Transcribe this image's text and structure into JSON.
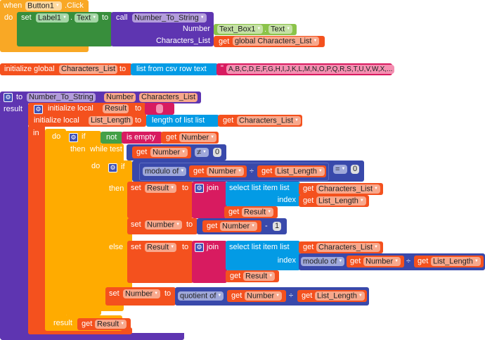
{
  "event": {
    "when": "when",
    "component": "Button1",
    "event": ".Click",
    "do": "do"
  },
  "set_label": {
    "set": "set",
    "component": "Label1",
    "dot": ".",
    "property": "Text",
    "to": "to"
  },
  "call": {
    "call": "call",
    "proc": "Number_To_String",
    "arg1": "Number",
    "arg2": "Characters_List"
  },
  "textbox": {
    "component": "Text_Box1",
    "dot": ".",
    "property": "Text"
  },
  "get_global": {
    "get": "get",
    "var": "global Characters_List"
  },
  "init_global": {
    "label": "initialize global",
    "name": "Characters_List",
    "to": "to",
    "csv": "list from csv row  text",
    "quote": "\"",
    "value": "A,B,C,D,E,F,G,H,I,J,K,L,M,N,O,P,Q,R,S,T,U,V,W,X,..."
  },
  "procedure": {
    "to": "to",
    "name": "Number_To_String",
    "param1": "Number",
    "param2": "Characters_List",
    "result": "result"
  },
  "local": {
    "init": "initialize local",
    "result_var": "Result",
    "to": "to",
    "init2": "initialize local",
    "len_var": "List_Length",
    "length_of": "length of list  list",
    "get": "get",
    "chars": "Characters_List",
    "in": "in"
  },
  "do_block": {
    "do": "do",
    "if": "if",
    "then": "then",
    "not": "not",
    "is_empty": "is empty",
    "get": "get",
    "number": "Number"
  },
  "while": {
    "label": "while  test",
    "neq": "≠",
    "zero": "0",
    "do": "do"
  },
  "inner_if": {
    "if": "if",
    "modulo": "modulo of",
    "div": "÷",
    "length": "List_Length",
    "eq": "=",
    "zero": "0",
    "then": "then",
    "else": "else"
  },
  "then_branch": {
    "set": "set",
    "result": "Result",
    "to": "to",
    "join": "join",
    "select": "select list item  list",
    "index": "index",
    "chars": "Characters_List",
    "length": "List_Length",
    "get": "get",
    "number": "Number",
    "minus": "-",
    "one": "1"
  },
  "else_branch": {
    "modulo": "modulo of",
    "div": "÷"
  },
  "quotient": {
    "set": "set",
    "number": "Number",
    "to": "to",
    "quotient": "quotient of",
    "div": "÷",
    "length": "List_Length",
    "get": "get"
  },
  "final": {
    "result": "result",
    "get": "get",
    "var": "Result"
  }
}
